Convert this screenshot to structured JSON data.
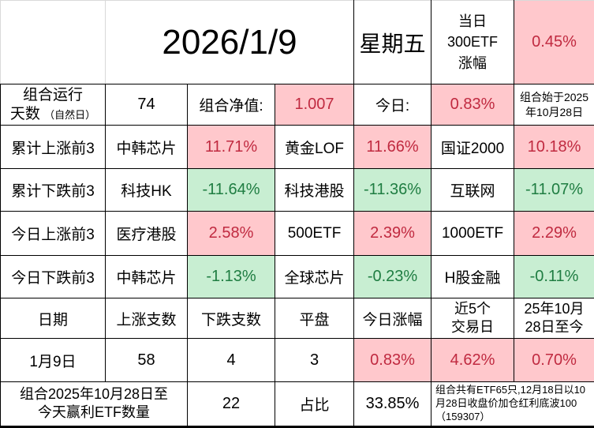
{
  "colors": {
    "pink_bg": "#ffc8cc",
    "red_text": "#c02a40",
    "green_bg": "#c8eed2",
    "green_text": "#1f7d42",
    "grid_border": "#000000",
    "outer_gridline": "#d9d9d9"
  },
  "top": {
    "date": "2026/1/9",
    "weekday": "星期五",
    "etf300_label": "当日\n300ETF\n涨幅",
    "etf300_change": "0.45%"
  },
  "summary": {
    "days_label_line1": "组合运行",
    "days_label_line2": "天数",
    "days_label_note": "（自然日）",
    "days_value": "74",
    "nav_label": "组合净值:",
    "nav_value": "1.007",
    "today_label": "今日:",
    "today_change": "0.83%",
    "start_note": "组合始于2025年10月28日"
  },
  "rank_rows": [
    {
      "label": "累计上涨前3",
      "direction": "up",
      "items": [
        {
          "name": "中韩芯片",
          "value": "11.71%"
        },
        {
          "name": "黄金LOF",
          "value": "11.66%"
        },
        {
          "name": "国证2000",
          "value": "10.18%"
        }
      ]
    },
    {
      "label": "累计下跌前3",
      "direction": "down",
      "items": [
        {
          "name": "科技HK",
          "value": "-11.64%"
        },
        {
          "name": "科技港股",
          "value": "-11.36%"
        },
        {
          "name": "互联网",
          "value": "-11.07%"
        }
      ]
    },
    {
      "label": "今日上涨前3",
      "direction": "up",
      "items": [
        {
          "name": "医疗港股",
          "value": "2.58%"
        },
        {
          "name": "500ETF",
          "value": "2.39%"
        },
        {
          "name": "1000ETF",
          "value": "2.29%"
        }
      ]
    },
    {
      "label": "今日下跌前3",
      "direction": "down",
      "items": [
        {
          "name": "中韩芯片",
          "value": "-1.13%"
        },
        {
          "name": "全球芯片",
          "value": "-0.23%"
        },
        {
          "name": "H股金融",
          "value": "-0.11%"
        }
      ]
    }
  ],
  "stats": {
    "headers": [
      "日期",
      "上涨支数",
      "下跌支数",
      "平盘",
      "今日涨幅",
      "近5个\n交易日",
      "25年10月\n28日至今"
    ],
    "row": {
      "date": "1月9日",
      "up": "58",
      "down": "4",
      "flat": "3",
      "today": "0.83%",
      "last5": "4.62%",
      "since_start": "0.70%"
    }
  },
  "footer": {
    "winners_label": "组合2025年10月28日至\n今天赢利ETF数量",
    "winners_count": "22",
    "share_label": "占比",
    "share_value": "33.85%",
    "note": "组合共有ETF65只,12月18日以10月28日收盘价加仓红利底波100（159307）"
  }
}
